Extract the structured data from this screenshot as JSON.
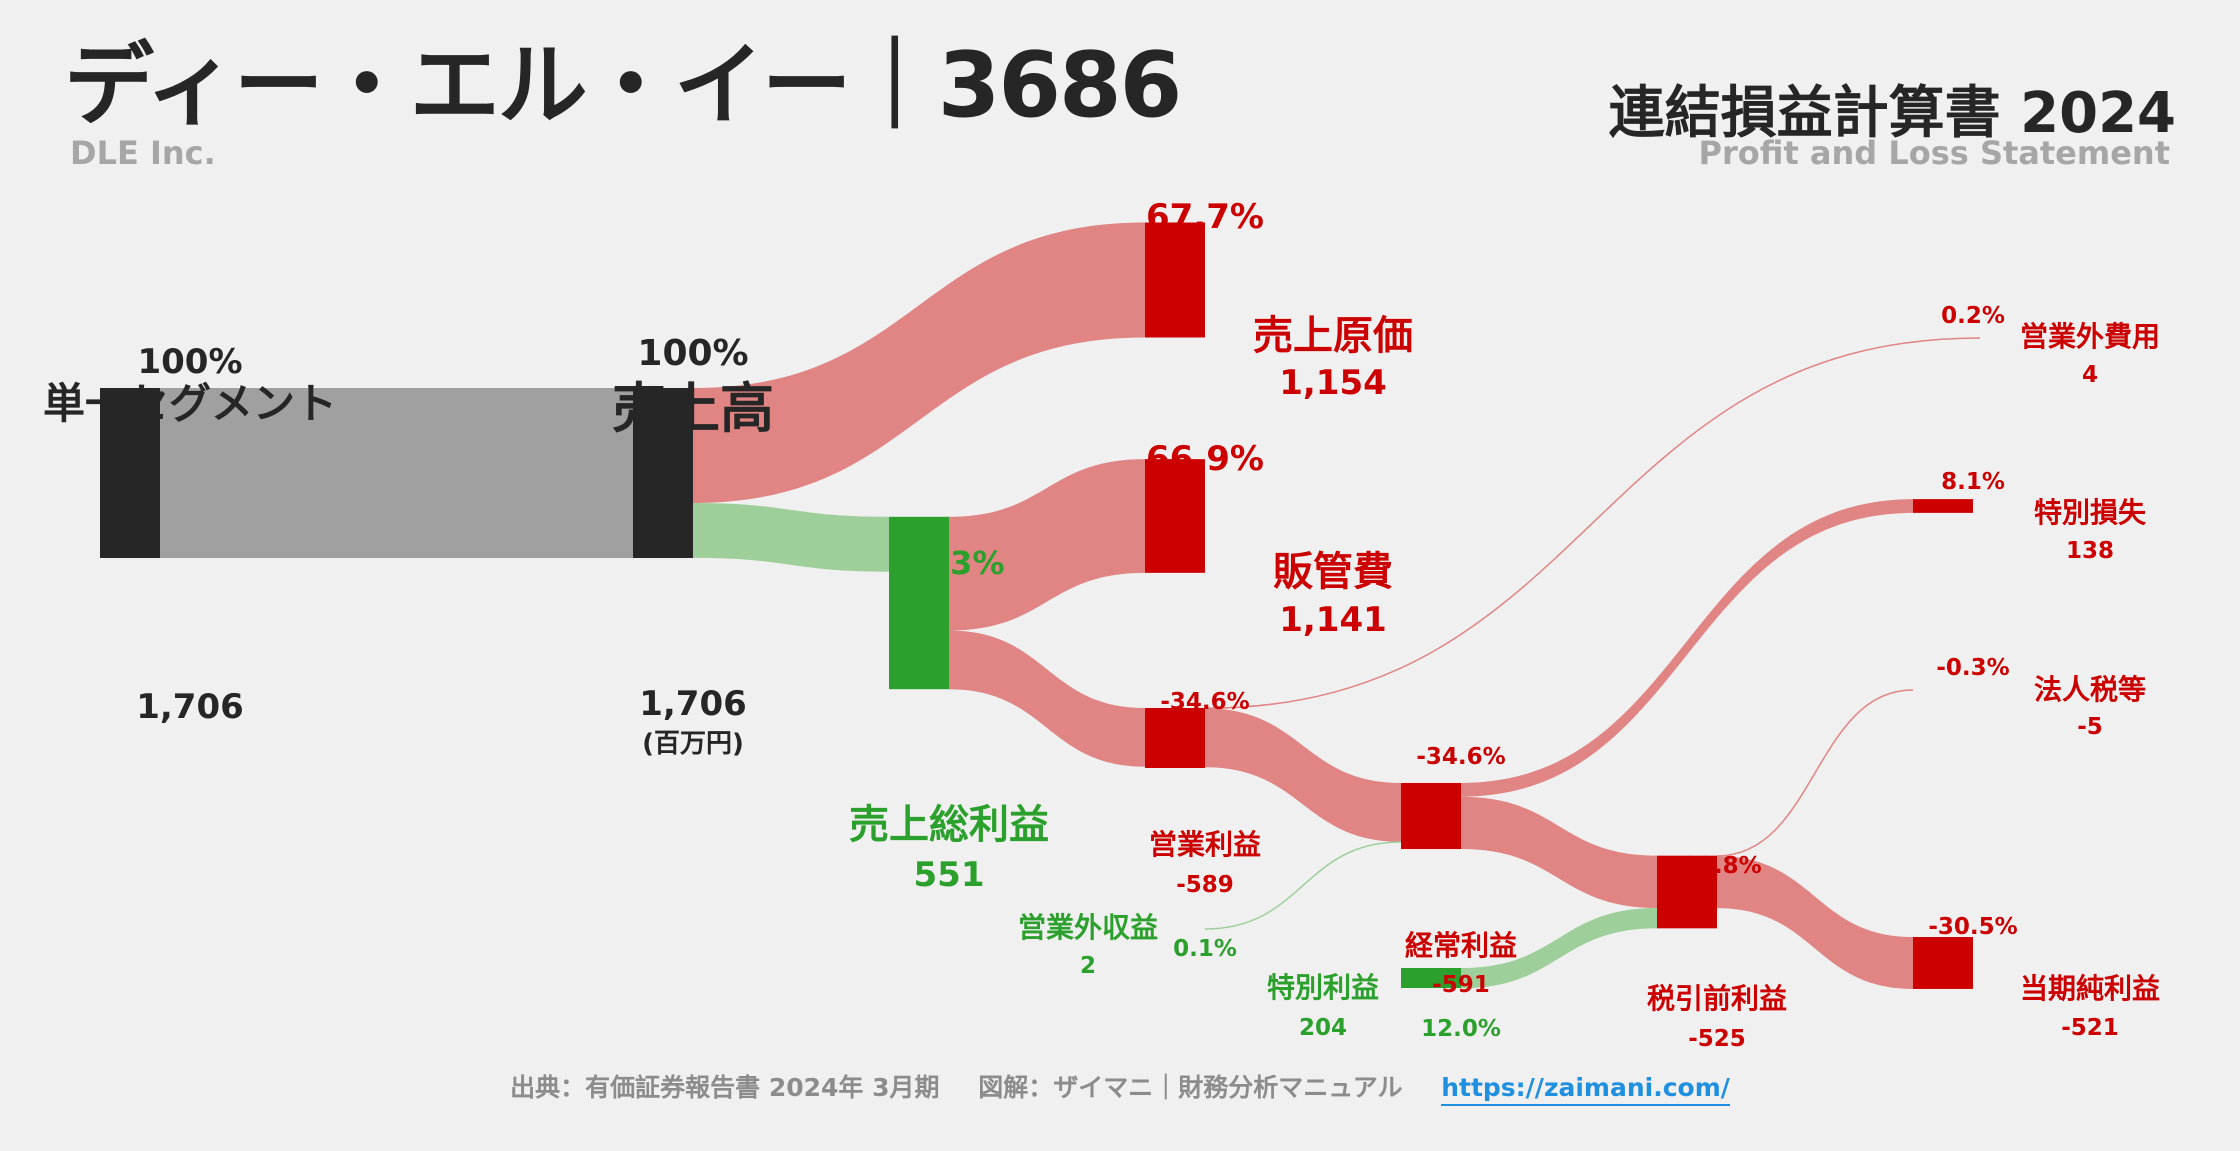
{
  "header": {
    "company_name": "ディー・エル・イー｜3686",
    "company_en": "DLE Inc.",
    "statement_title": "連結損益計算書 2024",
    "statement_en": "Profit and Loss Statement"
  },
  "footer": {
    "source": "出典：有価証券報告書 2024年 3月期",
    "credit": "図解：ザイマニ｜財務分析マニュアル",
    "url": "https://zaimani.com/"
  },
  "colors": {
    "cost": "#cc0000",
    "cost_flow": "#e08484",
    "profit": "#2ca02c",
    "profit_flow": "#9ecf9a",
    "revenue": "#262626",
    "revenue_flow": "#a0a0a0"
  },
  "chart_data": {
    "type": "sankey",
    "unit": "(百万円)",
    "nodes": [
      {
        "id": "segment",
        "name": "単一セグメント",
        "value": "1,706",
        "pct": "100%"
      },
      {
        "id": "revenue",
        "name": "売上高",
        "value": "1,706",
        "pct": "100%"
      },
      {
        "id": "cogs",
        "name": "売上原価",
        "value": "1,154",
        "pct": "67.7%"
      },
      {
        "id": "gross",
        "name": "売上総利益",
        "value": "551",
        "pct": "32.3%"
      },
      {
        "id": "sga",
        "name": "販管費",
        "value": "1,141",
        "pct": "66.9%"
      },
      {
        "id": "op",
        "name": "営業利益",
        "value": "-589",
        "pct": "-34.6%"
      },
      {
        "id": "nonop_inc",
        "name": "営業外収益",
        "value": "2",
        "pct": "0.1%"
      },
      {
        "id": "nonop_exp",
        "name": "営業外費用",
        "value": "4",
        "pct": "0.2%"
      },
      {
        "id": "ord",
        "name": "経常利益",
        "value": "-591",
        "pct": "-34.6%"
      },
      {
        "id": "ext_gain",
        "name": "特別利益",
        "value": "204",
        "pct": "12.0%"
      },
      {
        "id": "ext_loss",
        "name": "特別損失",
        "value": "138",
        "pct": "8.1%"
      },
      {
        "id": "pretax",
        "name": "税引前利益",
        "value": "-525",
        "pct": "-30.8%"
      },
      {
        "id": "tax",
        "name": "法人税等",
        "value": "-5",
        "pct": "-0.3%"
      },
      {
        "id": "net",
        "name": "当期純利益",
        "value": "-521",
        "pct": "-30.5%"
      }
    ],
    "links": [
      {
        "source": "segment",
        "target": "revenue",
        "value": 1706
      },
      {
        "source": "revenue",
        "target": "cogs",
        "value": 1154
      },
      {
        "source": "revenue",
        "target": "gross",
        "value": 551
      },
      {
        "source": "gross",
        "target": "sga",
        "value": 1141
      },
      {
        "source": "gross",
        "target": "op",
        "value": 589
      },
      {
        "source": "op",
        "target": "nonop_exp",
        "value": 4
      },
      {
        "source": "nonop_inc",
        "target": "ord",
        "value": 2
      },
      {
        "source": "op",
        "target": "ord",
        "value": 591
      },
      {
        "source": "ord",
        "target": "ext_loss",
        "value": 138
      },
      {
        "source": "ord",
        "target": "pretax",
        "value": 525
      },
      {
        "source": "ext_gain",
        "target": "pretax",
        "value": 204
      },
      {
        "source": "pretax",
        "target": "tax",
        "value": 5
      },
      {
        "source": "pretax",
        "target": "net",
        "value": 521
      }
    ]
  }
}
